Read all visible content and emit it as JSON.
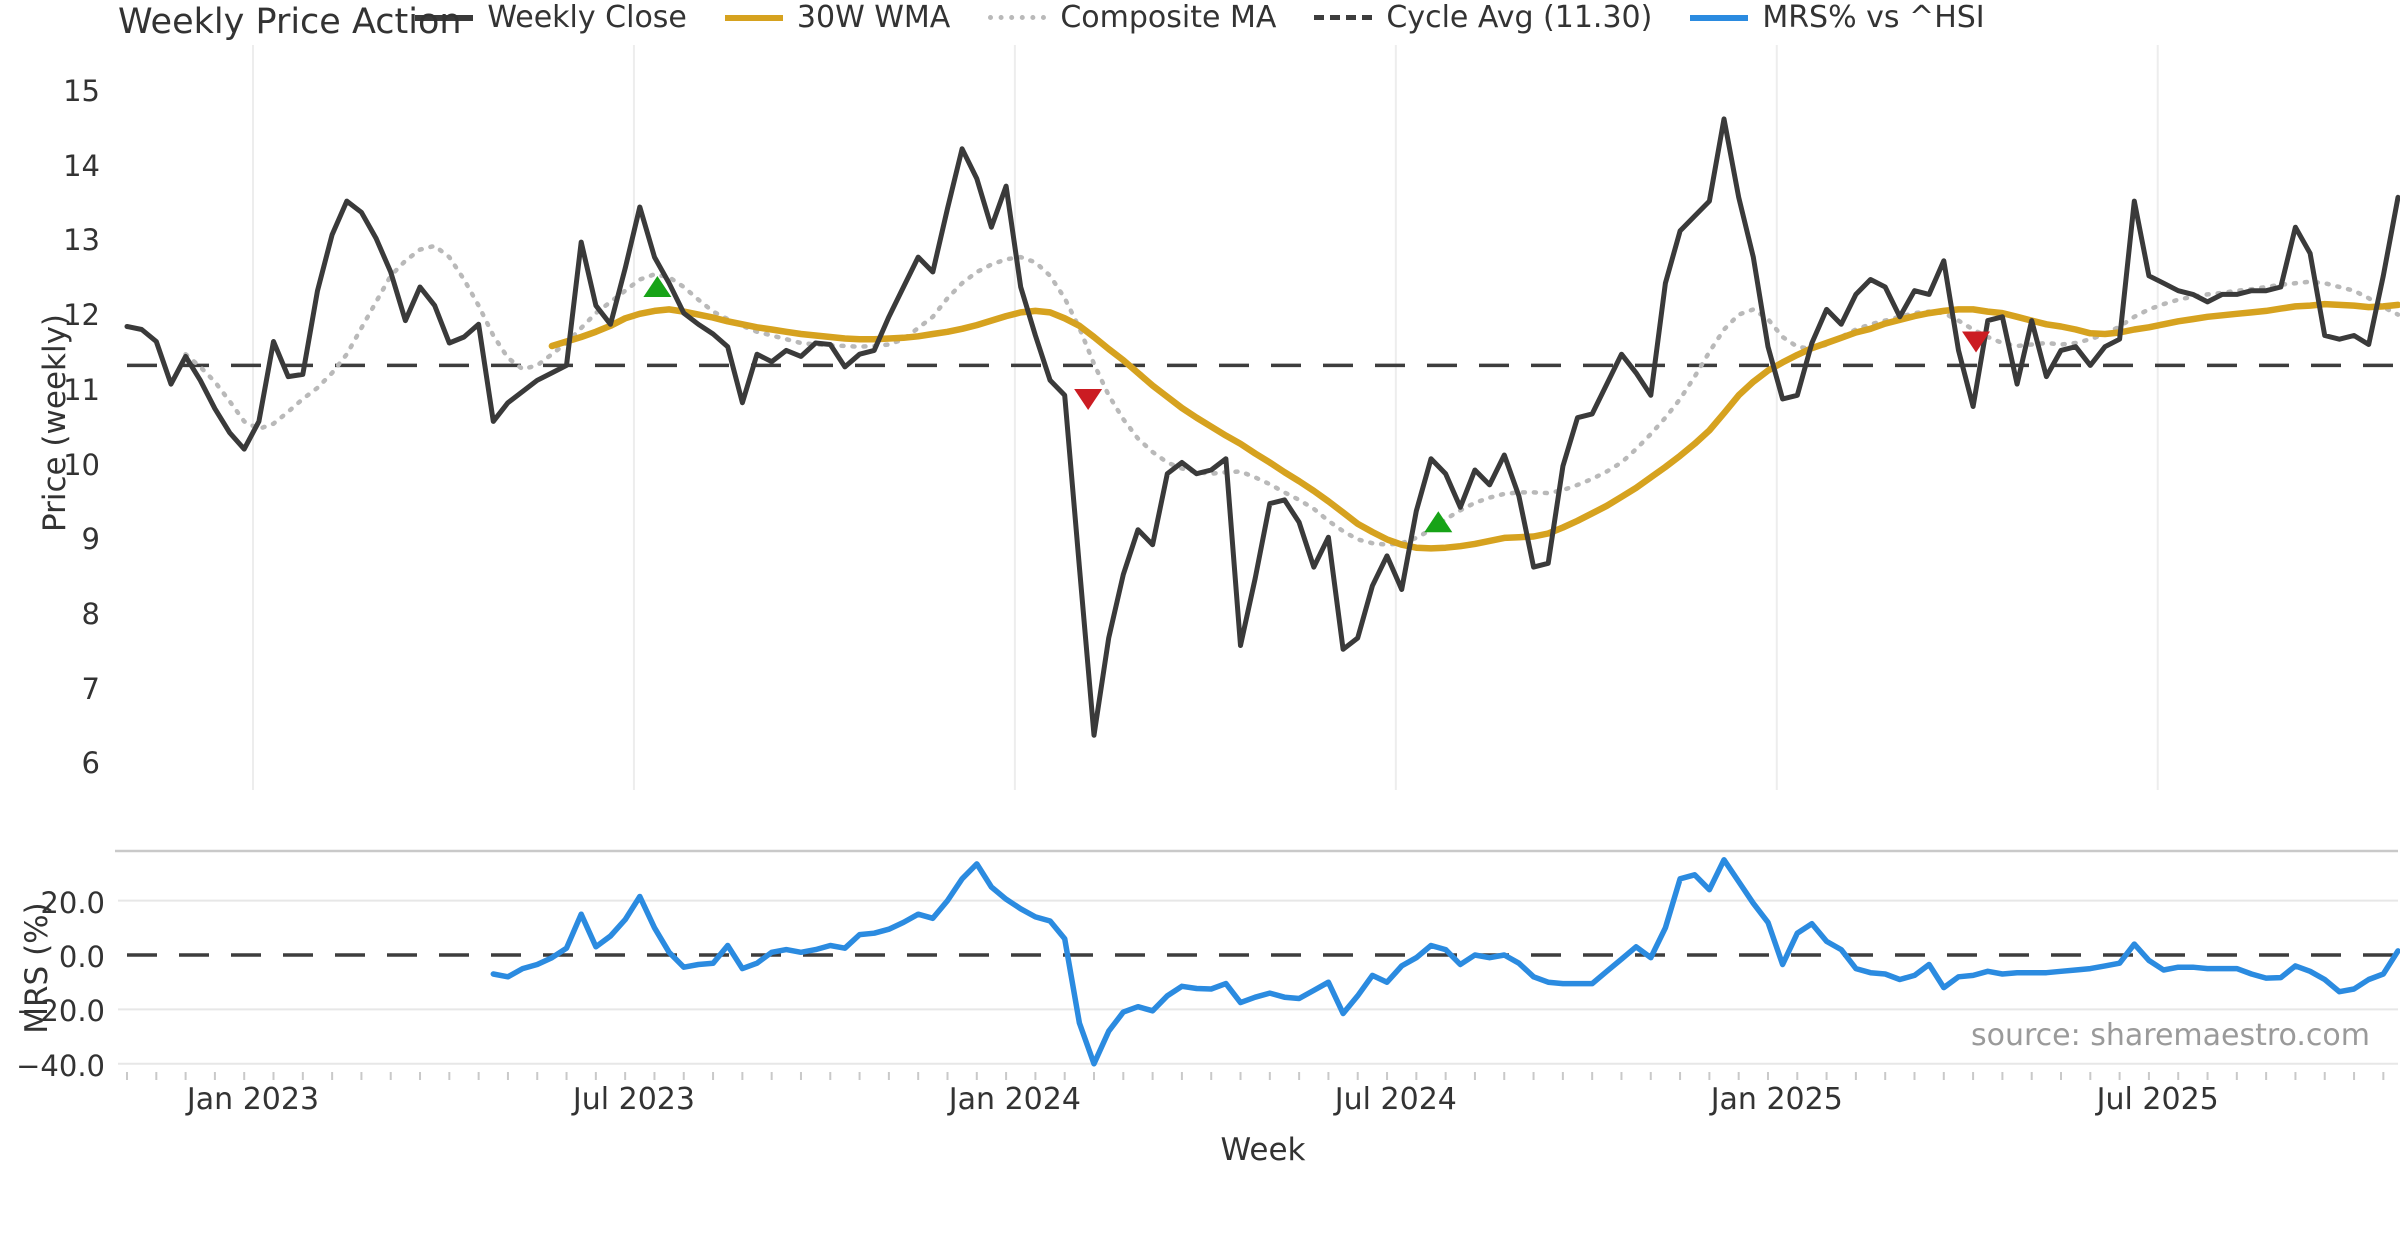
{
  "title": "Weekly Price Action",
  "source_note": "source: sharemaestro.com",
  "colors": {
    "weekly_close": "#3a3a3a",
    "wma_30w": "#d6a21f",
    "composite_ma": "#b9b9b9",
    "cycle_avg": "#3d3d3d",
    "mrs": "#2b8be0",
    "buy_marker": "#17a317",
    "sell_marker": "#cb1c22",
    "grid": "#ededed",
    "panel_separator": "#c9c9c9",
    "minor_tick": "#c9c9c9",
    "text": "#333333",
    "source_text": "#9a9a9a"
  },
  "legend": {
    "items": [
      {
        "label": "Weekly Close",
        "style": "solid",
        "color": "#3a3a3a"
      },
      {
        "label": "30W WMA",
        "style": "solid",
        "color": "#d6a21f"
      },
      {
        "label": "Composite MA",
        "style": "dotted",
        "color": "#b9b9b9"
      },
      {
        "label": "Cycle Avg (11.30)",
        "style": "dashed",
        "color": "#3d3d3d"
      },
      {
        "label": "MRS% vs ^HSI",
        "style": "solid",
        "color": "#2b8be0"
      }
    ]
  },
  "axes": {
    "x": {
      "label": "Week",
      "start_date": "2022-10-31",
      "interval": "weekly",
      "total_weeks": 156,
      "ticks": [
        {
          "label": "Jan 2023",
          "week": 8.6
        },
        {
          "label": "Jul 2023",
          "week": 34.6
        },
        {
          "label": "Jan 2024",
          "week": 60.6
        },
        {
          "label": "Jul 2024",
          "week": 86.6
        },
        {
          "label": "Jan 2025",
          "week": 112.6
        },
        {
          "label": "Jul 2025",
          "week": 138.6
        }
      ]
    },
    "price": {
      "label": "Price (weekly)",
      "ticks": [
        15,
        14,
        13,
        12,
        11,
        10,
        9,
        8,
        7,
        6
      ],
      "ylim": [
        5.6,
        15.6
      ]
    },
    "mrs": {
      "label": "MRS (%)",
      "tick_labels": [
        "20.0",
        "0.0",
        "−20.0",
        "−40.0"
      ],
      "tick_values": [
        20,
        0,
        -20,
        -40
      ],
      "ylim": [
        -43,
        38
      ]
    }
  },
  "chart_data": [
    {
      "type": "line",
      "panel": "price",
      "title": "Weekly Price Action",
      "xlabel": "Week",
      "ylabel": "Price (weekly)",
      "ylim": [
        5.6,
        15.6
      ],
      "grid": "vertical-only",
      "cycle_avg_value": 11.3,
      "series": [
        {
          "name": "Weekly Close",
          "start_week": 0,
          "values": [
            11.82,
            11.78,
            11.62,
            11.05,
            11.42,
            11.1,
            10.72,
            10.4,
            10.18,
            10.55,
            11.62,
            11.15,
            11.18,
            12.3,
            13.05,
            13.5,
            13.35,
            13.0,
            12.55,
            11.9,
            12.35,
            12.1,
            11.6,
            11.68,
            11.85,
            10.55,
            10.8,
            10.95,
            11.1,
            11.2,
            11.3,
            12.95,
            12.1,
            11.85,
            12.6,
            13.42,
            12.75,
            12.4,
            12.0,
            11.85,
            11.72,
            11.55,
            10.8,
            11.45,
            11.35,
            11.5,
            11.42,
            11.6,
            11.58,
            11.28,
            11.45,
            11.5,
            11.95,
            12.35,
            12.75,
            12.55,
            13.4,
            14.2,
            13.8,
            13.15,
            13.7,
            12.35,
            11.7,
            11.1,
            10.9,
            8.6,
            6.35,
            7.65,
            8.5,
            9.1,
            8.9,
            9.85,
            10.0,
            9.85,
            9.9,
            10.05,
            7.55,
            8.45,
            9.45,
            9.5,
            9.2,
            8.6,
            9.0,
            7.5,
            7.65,
            8.35,
            8.75,
            8.3,
            9.35,
            10.05,
            9.85,
            9.4,
            9.9,
            9.7,
            10.1,
            9.55,
            8.6,
            8.65,
            9.95,
            10.6,
            10.65,
            11.05,
            11.45,
            11.2,
            10.9,
            12.4,
            13.1,
            13.3,
            13.5,
            14.6,
            13.55,
            12.75,
            11.55,
            10.85,
            10.9,
            11.6,
            12.05,
            11.85,
            12.25,
            12.45,
            12.35,
            11.95,
            12.3,
            12.25,
            12.7,
            11.5,
            10.75,
            11.9,
            11.95,
            11.05,
            11.9,
            11.15,
            11.5,
            11.55,
            11.3,
            11.55,
            11.65,
            13.5,
            12.5,
            12.4,
            12.3,
            12.25,
            12.15,
            12.25,
            12.25,
            12.3,
            12.3,
            12.35,
            13.15,
            12.8,
            11.7,
            11.65,
            11.7,
            11.58,
            12.5,
            13.55
          ]
        },
        {
          "name": "30W WMA",
          "start_week": 29,
          "values": [
            11.56,
            11.62,
            11.68,
            11.75,
            11.83,
            11.93,
            11.99,
            12.03,
            12.05,
            12.02,
            11.98,
            11.94,
            11.89,
            11.85,
            11.81,
            11.78,
            11.75,
            11.72,
            11.7,
            11.68,
            11.66,
            11.65,
            11.65,
            11.66,
            11.67,
            11.69,
            11.72,
            11.75,
            11.79,
            11.84,
            11.9,
            11.96,
            12.01,
            12.03,
            12.01,
            11.93,
            11.83,
            11.68,
            11.52,
            11.37,
            11.2,
            11.03,
            10.88,
            10.73,
            10.6,
            10.48,
            10.36,
            10.25,
            10.12,
            10.0,
            9.87,
            9.75,
            9.62,
            9.48,
            9.33,
            9.18,
            9.07,
            8.97,
            8.9,
            8.86,
            8.85,
            8.86,
            8.88,
            8.91,
            8.95,
            8.99,
            9.0,
            9.01,
            9.05,
            9.13,
            9.22,
            9.32,
            9.42,
            9.54,
            9.66,
            9.8,
            9.94,
            10.09,
            10.25,
            10.43,
            10.66,
            10.9,
            11.08,
            11.23,
            11.34,
            11.44,
            11.53,
            11.6,
            11.67,
            11.74,
            11.79,
            11.86,
            11.91,
            11.96,
            12.0,
            12.03,
            12.05,
            12.05,
            12.02,
            12.0,
            11.95,
            11.9,
            11.85,
            11.82,
            11.78,
            11.73,
            11.72,
            11.74,
            11.78,
            11.81,
            11.85,
            11.89,
            11.92,
            11.95,
            11.97,
            11.99,
            12.01,
            12.03,
            12.06,
            12.09,
            12.1,
            12.12,
            12.11,
            12.1,
            12.08,
            12.09,
            12.11
          ]
        },
        {
          "name": "Composite MA",
          "start_week": 4,
          "values": [
            11.45,
            11.28,
            11.08,
            10.82,
            10.55,
            10.45,
            10.52,
            10.68,
            10.85,
            11.0,
            11.2,
            11.45,
            11.8,
            12.15,
            12.5,
            12.7,
            12.85,
            12.9,
            12.75,
            12.45,
            12.1,
            11.7,
            11.4,
            11.25,
            11.3,
            11.45,
            11.6,
            11.8,
            12.0,
            12.15,
            12.3,
            12.45,
            12.52,
            12.48,
            12.35,
            12.18,
            12.02,
            11.92,
            11.83,
            11.75,
            11.7,
            11.65,
            11.6,
            11.58,
            11.57,
            11.56,
            11.55,
            11.56,
            11.58,
            11.65,
            11.8,
            11.95,
            12.2,
            12.4,
            12.55,
            12.65,
            12.72,
            12.75,
            12.68,
            12.5,
            12.2,
            11.8,
            11.32,
            10.9,
            10.58,
            10.32,
            10.14,
            10.0,
            9.92,
            9.87,
            9.85,
            9.87,
            9.88,
            9.8,
            9.71,
            9.6,
            9.5,
            9.38,
            9.22,
            9.08,
            8.97,
            8.92,
            8.9,
            8.92,
            8.99,
            9.1,
            9.24,
            9.36,
            9.46,
            9.53,
            9.58,
            9.6,
            9.6,
            9.59,
            9.63,
            9.7,
            9.78,
            9.88,
            10.0,
            10.18,
            10.38,
            10.6,
            10.85,
            11.15,
            11.48,
            11.78,
            11.98,
            12.05,
            11.92,
            11.68,
            11.55,
            11.52,
            11.58,
            11.68,
            11.78,
            11.85,
            11.9,
            11.95,
            12.0,
            12.02,
            12.0,
            11.9,
            11.78,
            11.68,
            11.6,
            11.56,
            11.58,
            11.6,
            11.58,
            11.6,
            11.65,
            11.72,
            11.82,
            11.95,
            12.05,
            12.12,
            12.18,
            12.22,
            12.25,
            12.27,
            12.3,
            12.32,
            12.35,
            12.38,
            12.4,
            12.42,
            12.4,
            12.35,
            12.3,
            12.2,
            12.08,
            11.98
          ]
        }
      ],
      "markers": {
        "buy": [
          {
            "week": 36.2,
            "price": 12.35
          },
          {
            "week": 89.5,
            "price": 9.2
          }
        ],
        "sell": [
          {
            "week": 65.6,
            "price": 10.85
          },
          {
            "week": 126.2,
            "price": 11.62
          }
        ]
      }
    },
    {
      "type": "line",
      "panel": "mrs",
      "ylabel": "MRS (%)",
      "ylim": [
        -43,
        38
      ],
      "zero_line_dashed": true,
      "series": [
        {
          "name": "MRS% vs ^HSI",
          "start_week": 25,
          "values": [
            -7,
            -8,
            -5,
            -3.5,
            -1,
            2.5,
            15,
            3,
            7,
            13,
            21.5,
            10,
            1,
            -4.5,
            -3.5,
            -3,
            3.5,
            -5,
            -3,
            1,
            2,
            1,
            2,
            3.5,
            2.5,
            7.5,
            8,
            9.5,
            12,
            15,
            13.5,
            20,
            28,
            33.5,
            25,
            20.5,
            17,
            14,
            12.5,
            6,
            -25,
            -40,
            -28,
            -21,
            -19,
            -20.5,
            -15,
            -11.5,
            -12.3,
            -12.5,
            -10.5,
            -17.5,
            -15.5,
            -14,
            -15.5,
            -16,
            -13,
            -10,
            -21.5,
            -15,
            -7.5,
            -10,
            -4,
            -1,
            3.5,
            2,
            -3.5,
            0,
            -1,
            0,
            -3,
            -8,
            -10,
            -10.5,
            -10.5,
            -10.5,
            -6,
            -1.5,
            3,
            -1,
            10,
            28,
            29.5,
            24,
            35,
            27,
            19,
            12,
            -3.5,
            8,
            11.5,
            5,
            2,
            -5,
            -6.5,
            -7,
            -9,
            -7.5,
            -3.5,
            -12,
            -8,
            -7.5,
            -6,
            -7,
            -6.5,
            -6.5,
            -6.5,
            -6,
            -5.5,
            -5,
            -4,
            -3,
            4,
            -2,
            -5.5,
            -4.5,
            -4.5,
            -5,
            -5,
            -5,
            -7,
            -8.5,
            -8.3,
            -4,
            -6,
            -9,
            -13.5,
            -12.5,
            -9,
            -7,
            1.5
          ]
        }
      ]
    }
  ]
}
